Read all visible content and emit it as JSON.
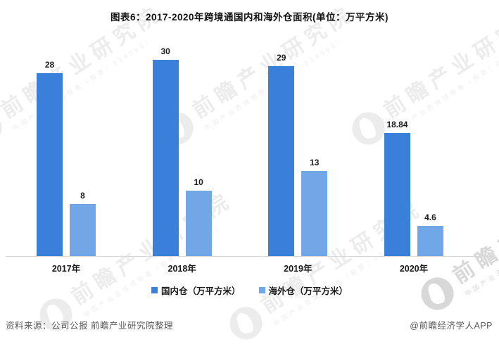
{
  "title": "图表6：2017-2020年跨境通国内和海外仓面积(单位：万平方米)",
  "chart_data": {
    "type": "bar",
    "title": "图表6：2017-2020年跨境通国内和海外仓面积(单位：万平方米)",
    "categories": [
      "2017年",
      "2018年",
      "2019年",
      "2020年"
    ],
    "series": [
      {
        "name": "国内仓（万平方米）",
        "color": "#3a80da",
        "values": [
          28,
          30,
          29,
          18.84
        ]
      },
      {
        "name": "海外仓（万平方米）",
        "color": "#72a7e7",
        "values": [
          8,
          10,
          13,
          4.6
        ]
      }
    ],
    "xlabel": "",
    "ylabel": "",
    "ylim": [
      0,
      31
    ],
    "grid": false,
    "legend_position": "bottom",
    "value_labels_visible": true
  },
  "footer": {
    "source": "资料来源：公司公报 前瞻产业研究院整理",
    "attribution": "@前瞻经济学人APP"
  },
  "watermark": {
    "text": "前瞻产业研究院",
    "subtext": "中国产业咨询领导者（股票：839599）"
  },
  "colors": {
    "series_domestic": "#3a80da",
    "series_overseas": "#72a7e7",
    "axis_line": "#d9d9d9",
    "footer_text": "#595959",
    "title_text": "#141414",
    "watermark": "#b9b9b9"
  }
}
